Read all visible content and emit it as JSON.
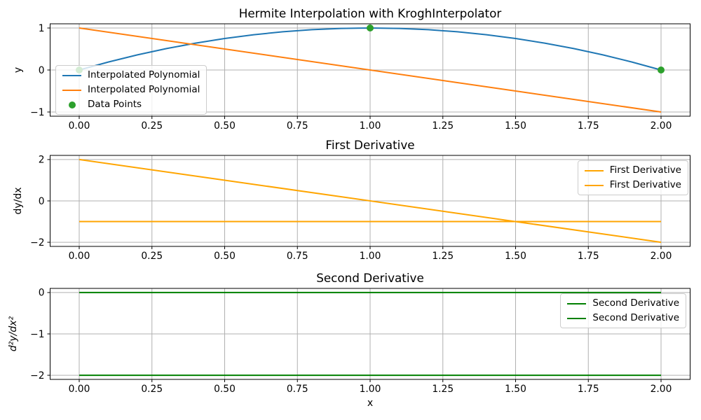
{
  "figure": {
    "background": "#ffffff",
    "grid_color": "#b0b0b0",
    "spine_color": "#000000"
  },
  "chart_data": [
    {
      "type": "line",
      "title": "Hermite Interpolation with KroghInterpolator",
      "xlabel": "",
      "ylabel": "y",
      "ylabel_italic": false,
      "xlim": [
        -0.1,
        2.1
      ],
      "ylim": [
        -1.1,
        1.1
      ],
      "grid": true,
      "legend_loc": "center-left",
      "xticks": [
        0,
        0.25,
        0.5,
        0.75,
        1,
        1.25,
        1.5,
        1.75,
        2
      ],
      "xtick_labels": [
        "0.00",
        "0.25",
        "0.50",
        "0.75",
        "1.00",
        "1.25",
        "1.50",
        "1.75",
        "2.00"
      ],
      "yticks": [
        1,
        0,
        -1
      ],
      "ytick_labels": [
        "1",
        "0",
        "−1"
      ],
      "series": [
        {
          "label": "Interpolated Polynomial",
          "kind": "line",
          "color": "#1f77b4",
          "x": [
            0,
            0.1,
            0.2,
            0.3,
            0.4,
            0.5,
            0.6,
            0.7,
            0.8,
            0.9,
            1,
            1.1,
            1.2,
            1.3,
            1.4,
            1.5,
            1.6,
            1.7,
            1.8,
            1.9,
            2
          ],
          "y": [
            0,
            0.19,
            0.36,
            0.51,
            0.64,
            0.75,
            0.84,
            0.91,
            0.96,
            0.99,
            1,
            0.99,
            0.96,
            0.91,
            0.84,
            0.75,
            0.64,
            0.51,
            0.36,
            0.19,
            0
          ]
        },
        {
          "label": "Interpolated Polynomial",
          "kind": "line",
          "color": "#ff7f0e",
          "x": [
            0,
            2
          ],
          "y": [
            1,
            -1
          ]
        },
        {
          "label": "Data Points",
          "kind": "scatter",
          "color": "#2ca02c",
          "x": [
            0,
            1,
            2
          ],
          "y": [
            0,
            1,
            0
          ]
        }
      ]
    },
    {
      "type": "line",
      "title": "First Derivative",
      "xlabel": "",
      "ylabel": "dy/dx",
      "ylabel_italic": false,
      "xlim": [
        -0.1,
        2.1
      ],
      "ylim": [
        -2.2,
        2.2
      ],
      "grid": true,
      "legend_loc": "upper-right",
      "xticks": [
        0,
        0.25,
        0.5,
        0.75,
        1,
        1.25,
        1.5,
        1.75,
        2
      ],
      "xtick_labels": [
        "0.00",
        "0.25",
        "0.50",
        "0.75",
        "1.00",
        "1.25",
        "1.50",
        "1.75",
        "2.00"
      ],
      "yticks": [
        2,
        0,
        -2
      ],
      "ytick_labels": [
        "2",
        "0",
        "−2"
      ],
      "series": [
        {
          "label": "First Derivative",
          "kind": "line",
          "color": "#ffa500",
          "x": [
            0,
            2
          ],
          "y": [
            2,
            -2
          ]
        },
        {
          "label": "First Derivative",
          "kind": "line",
          "color": "#ffa500",
          "x": [
            0,
            2
          ],
          "y": [
            -1,
            -1
          ]
        }
      ]
    },
    {
      "type": "line",
      "title": "Second Derivative",
      "xlabel": "x",
      "ylabel": "d²y/dx²",
      "ylabel_italic": true,
      "xlim": [
        -0.1,
        2.1
      ],
      "ylim": [
        -2.1,
        0.1
      ],
      "grid": true,
      "legend_loc": "upper-right",
      "xticks": [
        0,
        0.25,
        0.5,
        0.75,
        1,
        1.25,
        1.5,
        1.75,
        2
      ],
      "xtick_labels": [
        "0.00",
        "0.25",
        "0.50",
        "0.75",
        "1.00",
        "1.25",
        "1.50",
        "1.75",
        "2.00"
      ],
      "yticks": [
        0,
        -1,
        -2
      ],
      "ytick_labels": [
        "0",
        "−1",
        "−2"
      ],
      "series": [
        {
          "label": "Second Derivative",
          "kind": "line",
          "color": "#008000",
          "x": [
            0,
            2
          ],
          "y": [
            0,
            0
          ]
        },
        {
          "label": "Second Derivative",
          "kind": "line",
          "color": "#008000",
          "x": [
            0,
            2
          ],
          "y": [
            -2,
            -2
          ]
        }
      ]
    }
  ]
}
